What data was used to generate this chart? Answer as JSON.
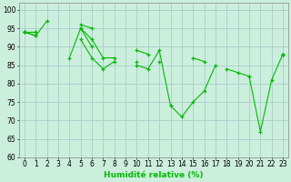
{
  "title": "",
  "xlabel": "Humidité relative (%)",
  "ylabel": "",
  "background_color": "#cceedd",
  "grid_color": "#aacccc",
  "line_color": "#00bb00",
  "xlim": [
    -0.5,
    23.5
  ],
  "ylim": [
    60,
    102
  ],
  "yticks": [
    60,
    65,
    70,
    75,
    80,
    85,
    90,
    95,
    100
  ],
  "xticks": [
    0,
    1,
    2,
    3,
    4,
    5,
    6,
    7,
    8,
    9,
    10,
    11,
    12,
    13,
    14,
    15,
    16,
    17,
    18,
    19,
    20,
    21,
    22,
    23
  ],
  "series": [
    [
      94,
      93,
      97,
      null,
      null,
      92,
      87,
      84,
      86,
      null,
      85,
      84,
      89,
      74,
      71,
      75,
      78,
      85,
      null,
      null,
      82,
      67,
      81,
      88
    ],
    [
      94,
      94,
      null,
      null,
      87,
      95,
      92,
      87,
      87,
      null,
      86,
      null,
      86,
      null,
      null,
      null,
      null,
      null,
      null,
      null,
      null,
      null,
      null,
      88
    ],
    [
      94,
      94,
      null,
      null,
      null,
      96,
      95,
      null,
      null,
      null,
      null,
      null,
      null,
      null,
      null,
      null,
      null,
      null,
      null,
      null,
      null,
      null,
      null,
      88
    ],
    [
      94,
      93,
      null,
      null,
      null,
      95,
      90,
      null,
      null,
      null,
      89,
      88,
      null,
      null,
      null,
      87,
      86,
      null,
      84,
      83,
      82,
      null,
      null,
      88
    ]
  ]
}
